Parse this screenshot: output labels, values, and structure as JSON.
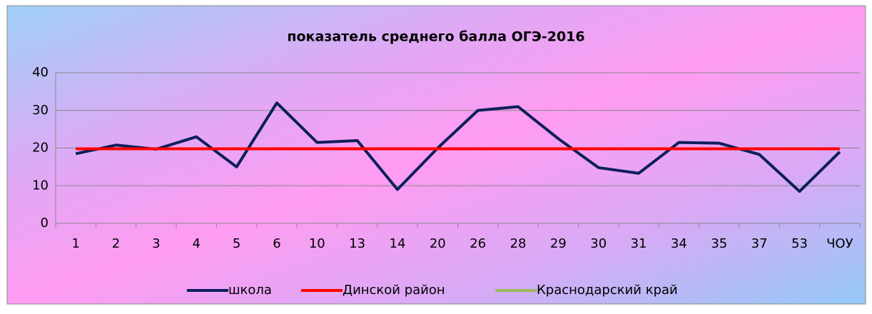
{
  "chart_data": {
    "type": "line",
    "title": "показатель среднего балла ОГЭ-2016",
    "categories": [
      "1",
      "2",
      "3",
      "4",
      "5",
      "6",
      "10",
      "13",
      "14",
      "20",
      "26",
      "28",
      "29",
      "30",
      "31",
      "34",
      "35",
      "37",
      "53",
      "ЧОУ"
    ],
    "series": [
      {
        "name": "школа",
        "color": "#0d1f5c",
        "values": [
          18.5,
          20.8,
          19.7,
          23,
          15,
          32,
          21.5,
          22,
          9,
          20,
          30,
          31,
          22.5,
          14.8,
          13.3,
          21.5,
          21.3,
          18.3,
          8.5,
          19
        ]
      },
      {
        "name": "Динской район",
        "color": "#ff0000",
        "values": [
          19.8,
          19.8,
          19.8,
          19.8,
          19.8,
          19.8,
          19.8,
          19.8,
          19.8,
          19.8,
          19.8,
          19.8,
          19.8,
          19.8,
          19.8,
          19.8,
          19.8,
          19.8,
          19.8,
          19.8
        ]
      },
      {
        "name": "Краснодарский край",
        "color": "#9bbb59",
        "values": [
          19.8,
          19.8,
          19.8,
          19.8,
          19.8,
          19.8,
          19.8,
          19.8,
          19.8,
          19.8,
          19.8,
          19.8,
          19.8,
          19.8,
          19.8,
          19.8,
          19.8,
          19.8,
          19.8,
          19.8
        ]
      }
    ],
    "ylim": [
      0,
      40
    ],
    "yticks": [
      0,
      10,
      20,
      30,
      40
    ],
    "grid": true,
    "legend": "bottom"
  }
}
